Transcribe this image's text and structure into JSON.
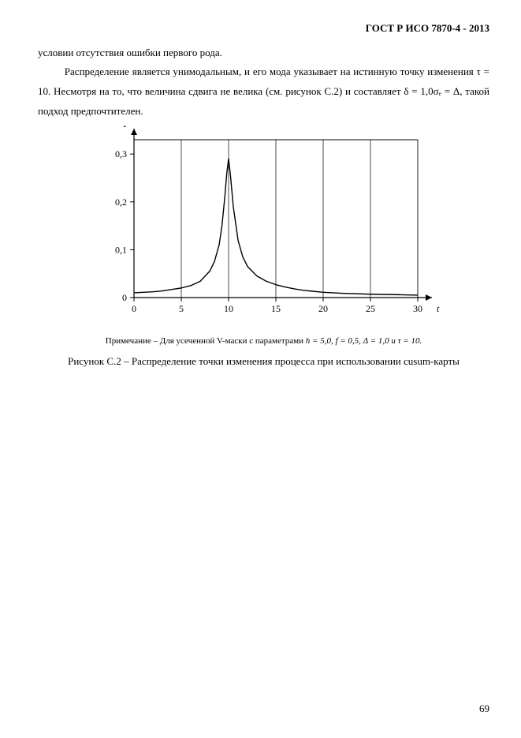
{
  "header": {
    "title": "ГОСТ Р ИСО 7870-4 - 2013"
  },
  "text": {
    "line1": "условии отсутствия ошибки первого рода.",
    "para2": "Распределение является унимодальным, и его мода указывает на истинную точку изменения τ = 10. Несмотря на то, что величина сдвига не велика (см. рисунок С.2) и составляет δ = 1,0σₑ = Δ, такой подход предпочтителен."
  },
  "note": {
    "prefix": "Примечание  – Для усеченной V-маски с параметрами ",
    "params": "h = 5,0, f = 0,5, Δ = 1,0 и τ = 10."
  },
  "caption": "Рисунок С.2 – Распределение точки изменения процесса при использовании cusum-карты",
  "pagenum": "69",
  "chart": {
    "type": "line",
    "xlabel": "t",
    "ylabel": "P",
    "xlim": [
      0,
      30
    ],
    "ylim": [
      0,
      0.33
    ],
    "xticks": [
      0,
      5,
      10,
      15,
      20,
      25,
      30
    ],
    "yticks": [
      0,
      0.1,
      0.2,
      0.3
    ],
    "ytick_labels": [
      "0",
      "0,1",
      "0,2",
      "0,3"
    ],
    "grid_color": "#000000",
    "line_color": "#000000",
    "background_color": "#ffffff",
    "line_width": 1.4,
    "axis_width": 1.2,
    "minor_grid_x": [
      5,
      10,
      15,
      20,
      25
    ],
    "data": [
      [
        0,
        0.01
      ],
      [
        1,
        0.011
      ],
      [
        2,
        0.012
      ],
      [
        3,
        0.014
      ],
      [
        4,
        0.017
      ],
      [
        5,
        0.02
      ],
      [
        6,
        0.025
      ],
      [
        7,
        0.034
      ],
      [
        8,
        0.055
      ],
      [
        8.5,
        0.075
      ],
      [
        9,
        0.11
      ],
      [
        9.3,
        0.15
      ],
      [
        9.6,
        0.21
      ],
      [
        9.8,
        0.258
      ],
      [
        10,
        0.29
      ],
      [
        10.2,
        0.255
      ],
      [
        10.5,
        0.19
      ],
      [
        11,
        0.12
      ],
      [
        11.5,
        0.085
      ],
      [
        12,
        0.065
      ],
      [
        13,
        0.045
      ],
      [
        14,
        0.034
      ],
      [
        15,
        0.027
      ],
      [
        16,
        0.022
      ],
      [
        17,
        0.018
      ],
      [
        18,
        0.015
      ],
      [
        19,
        0.013
      ],
      [
        20,
        0.011
      ],
      [
        22,
        0.009
      ],
      [
        25,
        0.007
      ],
      [
        28,
        0.006
      ],
      [
        30,
        0.005
      ]
    ]
  }
}
